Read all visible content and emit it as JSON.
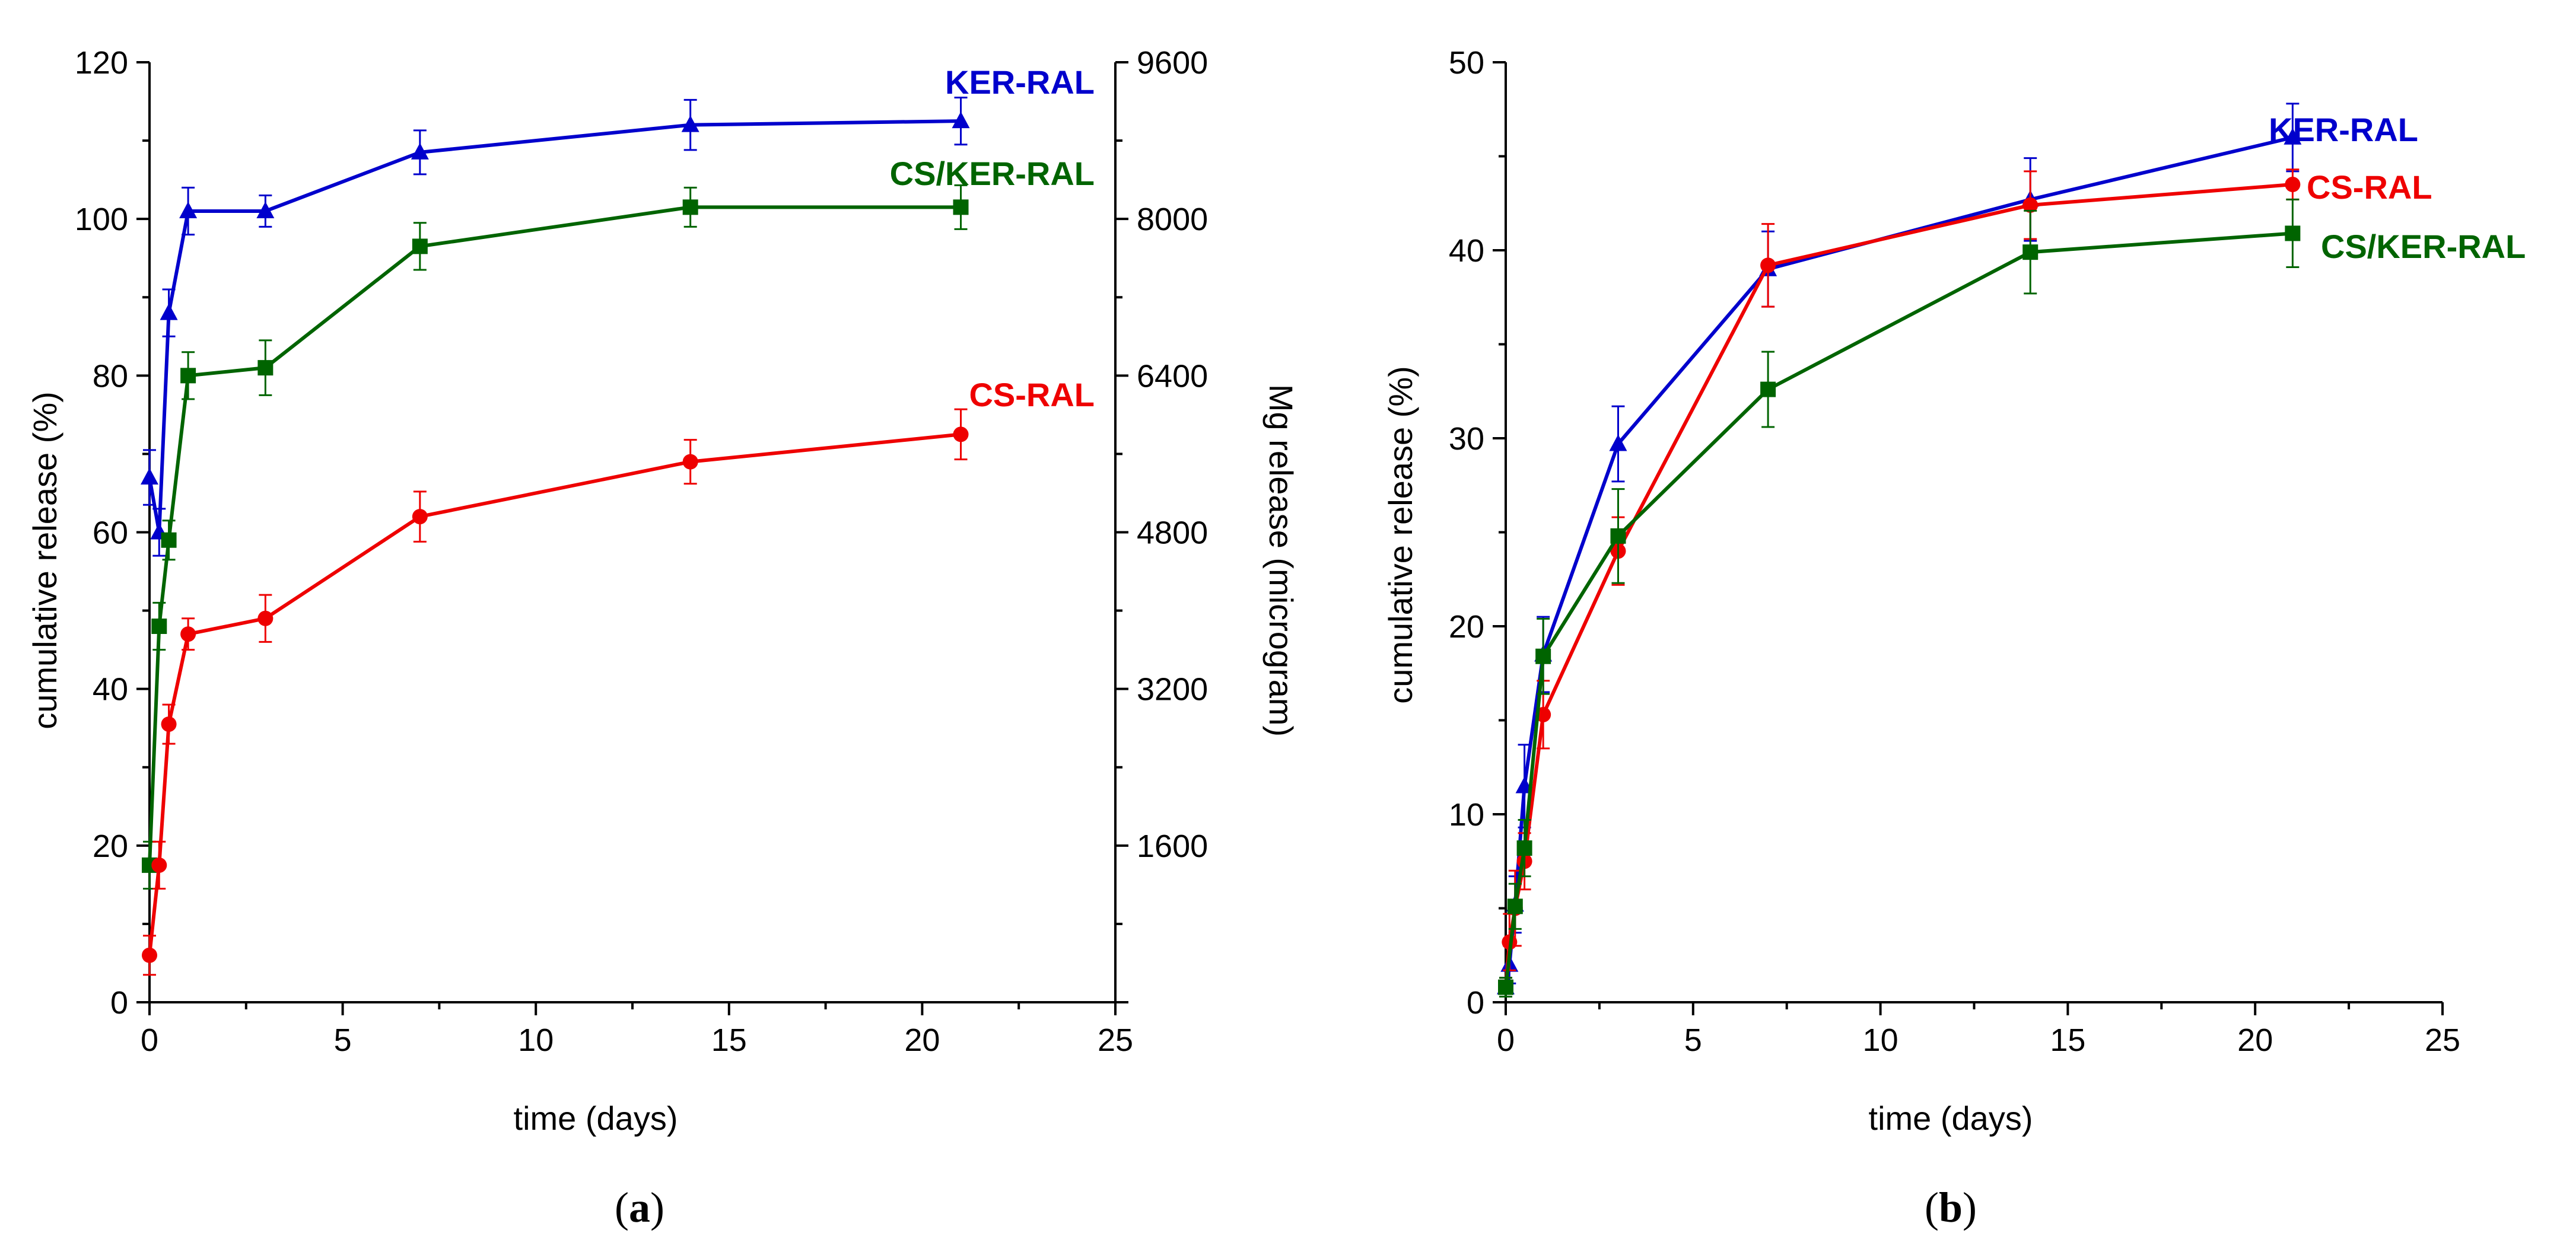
{
  "chart_data": [
    {
      "id": "a",
      "type": "line",
      "caption_letter": "a",
      "xlabel": "time (days)",
      "ylabel": "cumulative release (%)",
      "y2label": "Mg release (microgram)",
      "xlim": [
        0,
        25
      ],
      "ylim": [
        0,
        120
      ],
      "y2lim": [
        0,
        9600
      ],
      "xticks": [
        0,
        5,
        10,
        15,
        20,
        25
      ],
      "yticks": [
        0,
        20,
        40,
        60,
        80,
        100,
        120
      ],
      "y2ticks": [
        1600,
        3200,
        4800,
        6400,
        8000,
        9600
      ],
      "series": [
        {
          "name": "KER-RAL",
          "label": "KER-RAL",
          "color": "#0000cc",
          "marker": "triangle",
          "x": [
            0,
            0.25,
            0.5,
            1,
            3,
            7,
            14,
            21
          ],
          "y": [
            67,
            60,
            88,
            101,
            101,
            108.5,
            112,
            112.5
          ],
          "err": [
            3.5,
            3,
            3,
            3,
            2,
            2.8,
            3.2,
            3
          ]
        },
        {
          "name": "CS/KER-RAL",
          "label": "CS/KER-RAL",
          "color": "#006400",
          "marker": "square",
          "x": [
            0,
            0.25,
            0.5,
            1,
            3,
            7,
            14,
            21
          ],
          "y": [
            17.5,
            48,
            59,
            80,
            81,
            96.5,
            101.5,
            101.5
          ],
          "err": [
            3,
            3,
            2.5,
            3,
            3.5,
            3,
            2.5,
            2.8
          ]
        },
        {
          "name": "CS-RAL",
          "label": "CS-RAL",
          "color": "#ee0000",
          "marker": "circle",
          "x": [
            0,
            0.25,
            0.5,
            1,
            3,
            7,
            14,
            21
          ],
          "y": [
            6,
            17.5,
            35.5,
            47,
            49,
            62,
            69,
            72.5
          ],
          "err": [
            2.5,
            3,
            2.5,
            2,
            3,
            3.2,
            2.8,
            3.2
          ]
        }
      ]
    },
    {
      "id": "b",
      "type": "line",
      "caption_letter": "b",
      "xlabel": "time (days)",
      "ylabel": "cumulative release (%)",
      "xlim": [
        0,
        25
      ],
      "ylim": [
        0,
        50
      ],
      "xticks": [
        0,
        5,
        10,
        15,
        20,
        25
      ],
      "yticks": [
        0,
        10,
        20,
        30,
        40,
        50
      ],
      "series": [
        {
          "name": "KER-RAL",
          "label": "KER-RAL",
          "color": "#0000cc",
          "marker": "triangle",
          "x": [
            0,
            0.1,
            0.25,
            0.5,
            1,
            3,
            7,
            14,
            21
          ],
          "y": [
            0.8,
            2,
            5.2,
            11.5,
            18.5,
            29.7,
            39,
            42.7,
            46
          ],
          "err": [
            0.5,
            1,
            1.5,
            2.2,
            2,
            2,
            2,
            2.2,
            1.8
          ]
        },
        {
          "name": "CS-RAL",
          "label": "CS-RAL",
          "color": "#ee0000",
          "marker": "circle",
          "x": [
            0,
            0.1,
            0.25,
            0.5,
            1,
            3,
            7,
            14,
            21
          ],
          "y": [
            0.8,
            3.2,
            5,
            7.5,
            15.3,
            24,
            39.2,
            42.4,
            43.5
          ],
          "err": [
            0.5,
            1.5,
            2,
            1.5,
            1.8,
            1.8,
            2.2,
            1.8,
            0.8
          ]
        },
        {
          "name": "CS/KER-RAL",
          "label": "CS/KER-RAL",
          "color": "#006400",
          "marker": "square",
          "x": [
            0,
            0.25,
            0.5,
            1,
            3,
            7,
            14,
            21
          ],
          "y": [
            0.8,
            5.1,
            8.2,
            18.4,
            24.8,
            32.6,
            39.9,
            40.9
          ],
          "err": [
            0.5,
            1.2,
            1.5,
            2,
            2.5,
            2,
            2.2,
            1.8
          ]
        }
      ]
    }
  ]
}
